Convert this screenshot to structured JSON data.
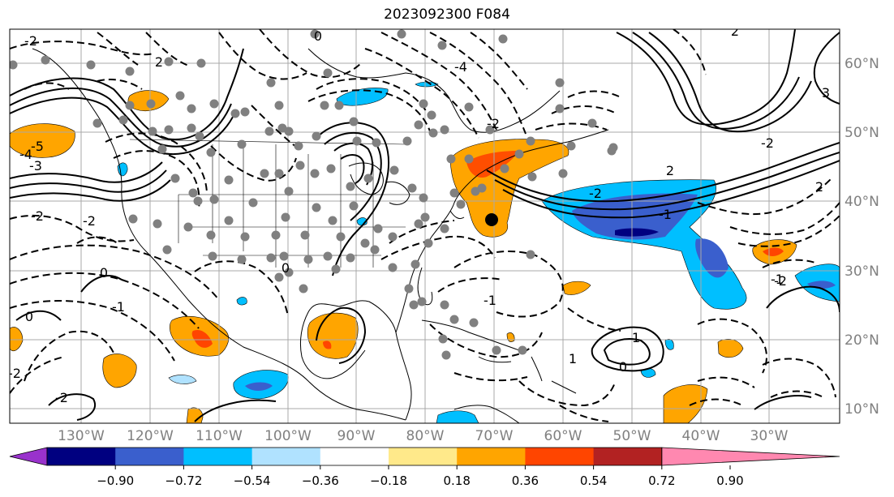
{
  "title": "2023092300 F084",
  "longitude_labels": [
    "130°W",
    "120°W",
    "110°W",
    "100°W",
    "90°W",
    "80°W",
    "70°W",
    "60°W",
    "50°W",
    "40°W",
    "30°W"
  ],
  "latitude_labels": [
    "60°N",
    "50°N",
    "40°N",
    "30°N",
    "20°N",
    "10°N"
  ],
  "contour_labels": [
    "-2",
    "0",
    "-4",
    "-2",
    "2",
    "-5",
    "-4",
    "-3",
    "-2",
    "-2",
    "2",
    "3",
    "2",
    "2",
    "-2",
    "-1",
    "0",
    "-2",
    "-1",
    "1",
    "0",
    "-2",
    "1",
    "0",
    "-1",
    "0",
    "-2",
    "-1",
    "-2"
  ],
  "colorbar": {
    "tick_labels": [
      "−0.90",
      "−0.72",
      "−0.54",
      "−0.36",
      "−0.18",
      "0.18",
      "0.36",
      "0.54",
      "0.72",
      "0.90"
    ],
    "colors": [
      "#9932cc",
      "#000080",
      "#3a5fcd",
      "#00bfff",
      "#b0e2ff",
      "#ffffff",
      "#ffe98a",
      "#ffa500",
      "#ff4500",
      "#b22222",
      "#ff88b0"
    ]
  },
  "palette": {
    "light_blue": "#b0e2ff",
    "sky_blue": "#00bfff",
    "royal_blue": "#3a5fcd",
    "navy": "#000080",
    "yellow": "#ffe98a",
    "orange": "#ffa500",
    "red_orange": "#ff4500",
    "grid": "#a9a9a9",
    "station_dot": "#808080",
    "axis_label": "#808080"
  }
}
